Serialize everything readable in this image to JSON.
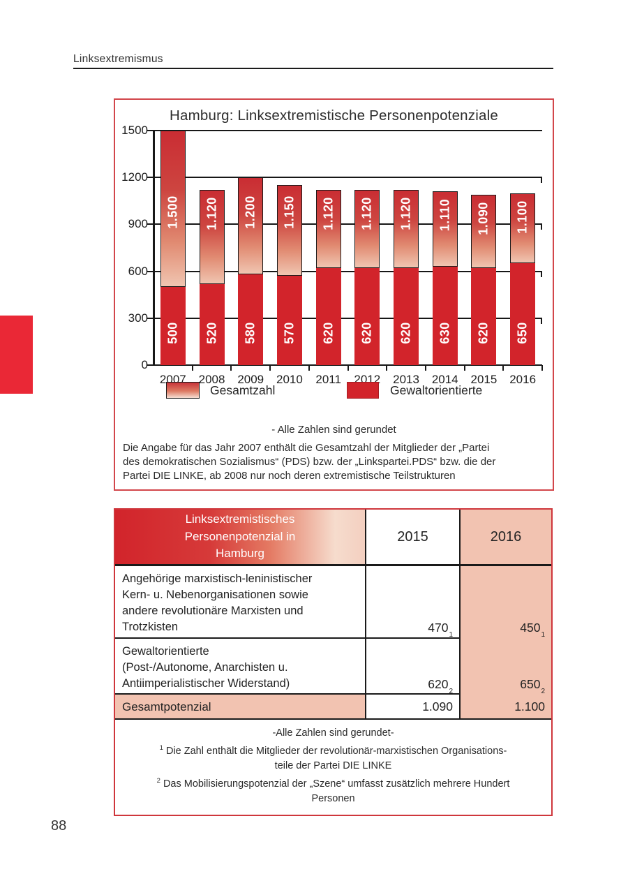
{
  "page": {
    "header": "Linksextremismus",
    "page_number": "88"
  },
  "chart_data": {
    "type": "bar",
    "title": "Hamburg: Linksextremistische Personenpotenziale",
    "categories": [
      "2007",
      "2008",
      "2009",
      "2010",
      "2011",
      "2012",
      "2013",
      "2014",
      "2015",
      "2016"
    ],
    "series": [
      {
        "name": "Gesamtzahl",
        "values": [
          1500,
          1120,
          1200,
          1150,
          1120,
          1120,
          1120,
          1110,
          1090,
          1100
        ],
        "labels": [
          "1.500",
          "1.120",
          "1.200",
          "1.150",
          "1.120",
          "1.120",
          "1.120",
          "1.110",
          "1.090",
          "1.100"
        ]
      },
      {
        "name": "Gewaltorientierte",
        "values": [
          500,
          520,
          580,
          570,
          620,
          620,
          620,
          630,
          620,
          650
        ],
        "labels": [
          "500",
          "520",
          "580",
          "570",
          "620",
          "620",
          "620",
          "630",
          "620",
          "650"
        ]
      }
    ],
    "xlabel": "",
    "ylabel": "",
    "ylim": [
      0,
      1500
    ],
    "ytick_step": 300,
    "grid": true,
    "legend_position": "bottom",
    "colors": {
      "solid_red": "#d2242b",
      "gradient_top": "#ca2d33",
      "gradient_bottom": "#f0c5b1"
    }
  },
  "chart_panel": {
    "note_centered": "- Alle Zahlen sind gerundet",
    "note_paragraph": "Die Angabe für das Jahr 2007 enthält die Gesamtzahl der Mitglieder der „Partei\ndes demokratischen Sozialismus“ (PDS) bzw. der „Linkspartei.PDS“ bzw. die der\nPartei DIE LINKE, ab 2008 nur noch deren extremistische Teilstrukturen"
  },
  "table": {
    "header": {
      "title": "Linksextremistisches Personenpotenzial in Hamburg",
      "col_2015": "2015",
      "col_2016": "2016"
    },
    "rows": [
      {
        "label": "Angehörige marxistisch-leninistischer\nKern- u. Nebenorganisationen sowie\nandere revolutionäre Marxisten und\nTrotzkisten",
        "v2015": "470",
        "sup2015": "1",
        "v2016": "450",
        "sup2016": "1"
      },
      {
        "label": "Gewaltorientierte\n(Post-/Autonome, Anarchisten u.\nAntiimperialistischer Widerstand)",
        "v2015": "620",
        "sup2015": "2",
        "v2016": "650",
        "sup2016": "2"
      },
      {
        "label": "Gesamtpotenzial",
        "v2015": "1.090",
        "sup2015": "",
        "v2016": "1.100",
        "sup2016": ""
      }
    ],
    "footnotes": {
      "note": "-Alle Zahlen sind gerundet-",
      "fn1_marker": "1",
      "fn1": "Die Zahl enthält die Mitglieder der revolutionär-marxistischen Organisations-\nteile der Partei DIE LINKE",
      "fn2_marker": "2",
      "fn2": "Das Mobilisierungspotenzial der „Szene“ umfasst zusätzlich mehrere Hundert\nPersonen"
    }
  },
  "colors": {
    "accent_red": "#d2242b",
    "panel_border": "#cf363c",
    "table_pink": "#f2c3b1",
    "side_tab_red": "#ea2836"
  }
}
